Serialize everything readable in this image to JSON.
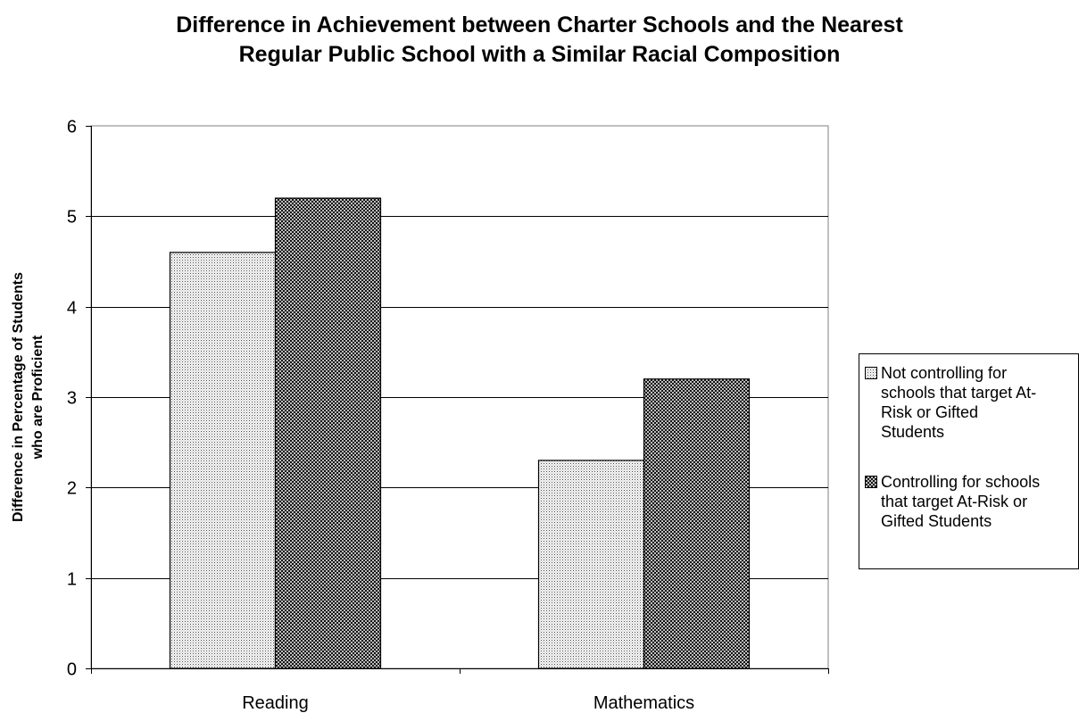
{
  "chart_data": {
    "type": "bar",
    "title_lines": [
      "Difference in Achievement between Charter Schools and the Nearest",
      "Regular Public School with a Similar Racial Composition"
    ],
    "ylabel_lines": [
      "Difference in Percentage of Students",
      "who are Proficient"
    ],
    "xlabel": "",
    "categories": [
      "Reading",
      "Mathematics"
    ],
    "series": [
      {
        "name": "Not controlling for schools that target At-Risk or Gifted Students",
        "legend_lines": [
          "Not controlling for",
          "schools that target At-",
          "Risk or Gifted",
          "Students"
        ],
        "values": [
          4.6,
          2.3
        ],
        "color": "#d9d9d9"
      },
      {
        "name": "Controlling for schools that target At-Risk or Gifted Students",
        "legend_lines": [
          "Controlling for schools",
          "that target At-Risk or",
          "Gifted Students"
        ],
        "values": [
          5.2,
          3.2
        ],
        "color": "#7f7f7f"
      }
    ],
    "yticks": [
      "0",
      "1",
      "2",
      "3",
      "4",
      "5",
      "6"
    ],
    "ylim": [
      0,
      6
    ],
    "grid": true,
    "legend_position": "right"
  }
}
